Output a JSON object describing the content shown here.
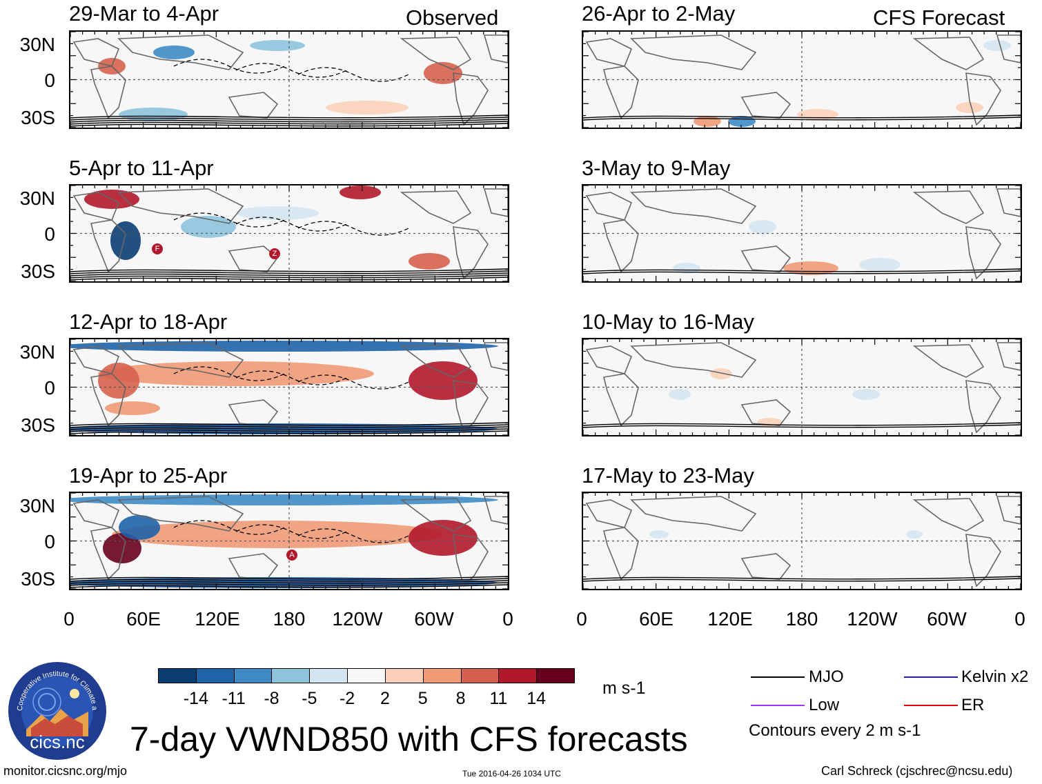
{
  "header": {
    "observed_label": "Observed",
    "forecast_label": "CFS Forecast"
  },
  "panels_left": [
    {
      "title": "29-Mar to 4-Apr"
    },
    {
      "title": "5-Apr to 11-Apr"
    },
    {
      "title": "12-Apr to 18-Apr"
    },
    {
      "title": "19-Apr to 25-Apr"
    }
  ],
  "panels_right": [
    {
      "title": "26-Apr to 2-May"
    },
    {
      "title": "3-May to 9-May"
    },
    {
      "title": "10-May to 16-May"
    },
    {
      "title": "17-May to 23-May"
    }
  ],
  "y_axis": [
    "30N",
    "0",
    "30S"
  ],
  "x_axis": [
    "0",
    "60E",
    "120E",
    "180",
    "120W",
    "60W",
    "0"
  ],
  "storm_markers": [
    {
      "label": "F",
      "panel": 2
    },
    {
      "label": "Z",
      "panel": 2
    },
    {
      "label": "A",
      "panel": 4
    }
  ],
  "colorbar": {
    "labels": [
      "-14",
      "-11",
      "-8",
      "-5",
      "-2",
      "2",
      "5",
      "8",
      "11",
      "14"
    ],
    "colors": [
      "#0a3d72",
      "#1f63a8",
      "#3f8cc5",
      "#8ec3de",
      "#d3e6f1",
      "#f7f7f7",
      "#fbd0b8",
      "#f09a76",
      "#d6604d",
      "#b2182b",
      "#67001f"
    ],
    "units": "m s-1"
  },
  "legend": {
    "items": [
      {
        "label": "MJO",
        "color": "#000000"
      },
      {
        "label": "Kelvin x2",
        "color": "#1a1acc"
      },
      {
        "label": "Low",
        "color": "#9b30ff"
      },
      {
        "label": "ER",
        "color": "#e00000"
      }
    ],
    "note": "Contours every 2 m s-1"
  },
  "logo": {
    "ring_text": "Cooperative Institute for Climate and Satellites",
    "name": "cics.nc"
  },
  "main_title": "7-day VWND850 with CFS forecasts",
  "footer": {
    "url": "monitor.cicsnc.org/mjo",
    "timestamp": "Tue 2016-04-26 1034 UTC",
    "author": "Carl Schreck (cjschrec@ncsu.edu)"
  }
}
